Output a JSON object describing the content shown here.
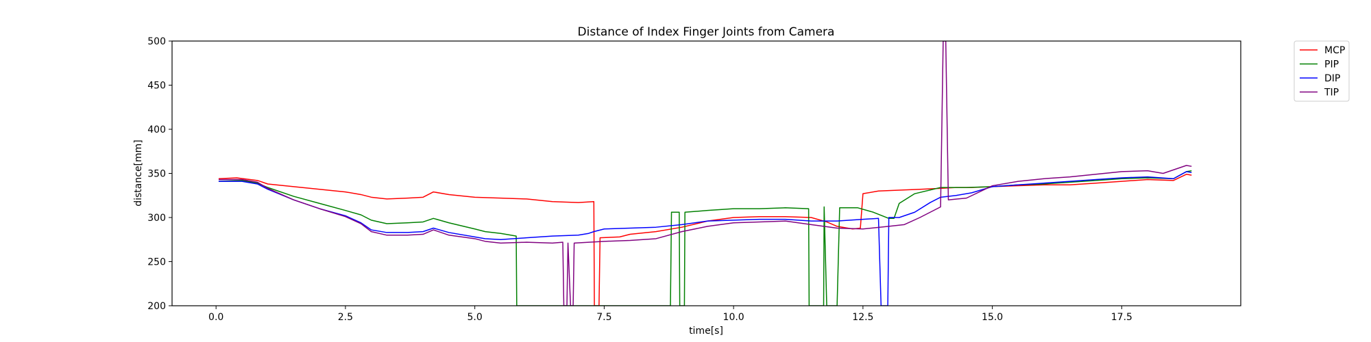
{
  "chart_data": {
    "type": "line",
    "title": "Distance of Index Finger Joints from Camera",
    "xlabel": "time[s]",
    "ylabel": "distance[mm]",
    "xlim": [
      -0.85,
      19.8
    ],
    "ylim": [
      200,
      500
    ],
    "xticks": [
      0.0,
      2.5,
      5.0,
      7.5,
      10.0,
      12.5,
      15.0,
      17.5
    ],
    "xtick_labels": [
      "0.0",
      "2.5",
      "5.0",
      "7.5",
      "10.0",
      "12.5",
      "15.0",
      "17.5"
    ],
    "yticks": [
      200,
      250,
      300,
      350,
      400,
      450,
      500
    ],
    "ytick_labels": [
      "200",
      "250",
      "300",
      "350",
      "400",
      "450",
      "500"
    ],
    "grid": false,
    "legend_position": "outside-top-right",
    "series": [
      {
        "name": "MCP",
        "color": "#ff0000",
        "points": [
          [
            0.05,
            344
          ],
          [
            0.4,
            345
          ],
          [
            0.8,
            342
          ],
          [
            1.0,
            338
          ],
          [
            1.5,
            335
          ],
          [
            2.0,
            332
          ],
          [
            2.5,
            329
          ],
          [
            2.8,
            326
          ],
          [
            3.0,
            323
          ],
          [
            3.3,
            321
          ],
          [
            3.7,
            322
          ],
          [
            4.0,
            323
          ],
          [
            4.2,
            329
          ],
          [
            4.5,
            326
          ],
          [
            5.0,
            323
          ],
          [
            5.5,
            322
          ],
          [
            6.0,
            321
          ],
          [
            6.5,
            318
          ],
          [
            7.0,
            317
          ],
          [
            7.3,
            318
          ],
          [
            7.31,
            200
          ],
          [
            7.4,
            200
          ],
          [
            7.42,
            277
          ],
          [
            7.8,
            278
          ],
          [
            8.0,
            281
          ],
          [
            8.5,
            284
          ],
          [
            9.0,
            289
          ],
          [
            9.5,
            296
          ],
          [
            10.0,
            300
          ],
          [
            10.5,
            301
          ],
          [
            11.0,
            301
          ],
          [
            11.5,
            300
          ],
          [
            11.8,
            295
          ],
          [
            12.0,
            290
          ],
          [
            12.3,
            287
          ],
          [
            12.45,
            288
          ],
          [
            12.5,
            327
          ],
          [
            12.8,
            330
          ],
          [
            13.2,
            331
          ],
          [
            13.6,
            332
          ],
          [
            14.0,
            333
          ],
          [
            14.3,
            334
          ],
          [
            14.6,
            334
          ],
          [
            15.0,
            335
          ],
          [
            15.5,
            336
          ],
          [
            16.0,
            337
          ],
          [
            16.5,
            337
          ],
          [
            17.0,
            339
          ],
          [
            17.5,
            341
          ],
          [
            18.0,
            343
          ],
          [
            18.5,
            342
          ],
          [
            18.75,
            349
          ],
          [
            18.85,
            348
          ]
        ]
      },
      {
        "name": "PIP",
        "color": "#008000",
        "points": [
          [
            0.05,
            341
          ],
          [
            0.5,
            342
          ],
          [
            0.8,
            339
          ],
          [
            1.0,
            334
          ],
          [
            1.5,
            324
          ],
          [
            2.0,
            316
          ],
          [
            2.5,
            308
          ],
          [
            2.8,
            303
          ],
          [
            3.0,
            297
          ],
          [
            3.3,
            293
          ],
          [
            3.7,
            294
          ],
          [
            4.0,
            295
          ],
          [
            4.2,
            299
          ],
          [
            4.5,
            294
          ],
          [
            5.0,
            287
          ],
          [
            5.2,
            284
          ],
          [
            5.5,
            282
          ],
          [
            5.8,
            279
          ],
          [
            5.81,
            200
          ],
          [
            5.9,
            200
          ],
          [
            8.78,
            200
          ],
          [
            8.8,
            306
          ],
          [
            8.95,
            306
          ],
          [
            8.96,
            200
          ],
          [
            9.05,
            200
          ],
          [
            9.06,
            306
          ],
          [
            9.5,
            308
          ],
          [
            10.0,
            310
          ],
          [
            10.5,
            310
          ],
          [
            11.0,
            311
          ],
          [
            11.45,
            310
          ],
          [
            11.46,
            200
          ],
          [
            11.74,
            200
          ],
          [
            11.75,
            312
          ],
          [
            11.8,
            200
          ],
          [
            12.0,
            200
          ],
          [
            12.05,
            311
          ],
          [
            12.4,
            311
          ],
          [
            12.7,
            306
          ],
          [
            13.0,
            299
          ],
          [
            13.1,
            299
          ],
          [
            13.2,
            316
          ],
          [
            13.5,
            327
          ],
          [
            14.0,
            334
          ],
          [
            14.5,
            334
          ],
          [
            15.0,
            335
          ],
          [
            15.5,
            337
          ],
          [
            16.0,
            338
          ],
          [
            16.5,
            340
          ],
          [
            17.0,
            342
          ],
          [
            17.5,
            344
          ],
          [
            18.0,
            345
          ],
          [
            18.5,
            344
          ],
          [
            18.75,
            352
          ],
          [
            18.85,
            353
          ]
        ]
      },
      {
        "name": "DIP",
        "color": "#0000ff",
        "points": [
          [
            0.05,
            341
          ],
          [
            0.5,
            341
          ],
          [
            0.8,
            338
          ],
          [
            1.0,
            332
          ],
          [
            1.5,
            320
          ],
          [
            2.0,
            310
          ],
          [
            2.5,
            302
          ],
          [
            2.8,
            294
          ],
          [
            3.0,
            286
          ],
          [
            3.3,
            283
          ],
          [
            3.7,
            283
          ],
          [
            4.0,
            284
          ],
          [
            4.2,
            288
          ],
          [
            4.5,
            283
          ],
          [
            5.0,
            278
          ],
          [
            5.2,
            276
          ],
          [
            5.5,
            275
          ],
          [
            6.0,
            277
          ],
          [
            6.5,
            279
          ],
          [
            7.0,
            280
          ],
          [
            7.2,
            282
          ],
          [
            7.3,
            284
          ],
          [
            7.5,
            287
          ],
          [
            8.0,
            288
          ],
          [
            8.5,
            289
          ],
          [
            9.0,
            292
          ],
          [
            9.5,
            296
          ],
          [
            10.0,
            297
          ],
          [
            10.5,
            298
          ],
          [
            11.0,
            298
          ],
          [
            11.5,
            296
          ],
          [
            12.0,
            296
          ],
          [
            12.5,
            298
          ],
          [
            12.8,
            299
          ],
          [
            12.85,
            200
          ],
          [
            12.98,
            200
          ],
          [
            13.0,
            300
          ],
          [
            13.2,
            300
          ],
          [
            13.5,
            306
          ],
          [
            13.8,
            317
          ],
          [
            14.0,
            323
          ],
          [
            14.3,
            325
          ],
          [
            14.6,
            328
          ],
          [
            15.0,
            335
          ],
          [
            15.5,
            337
          ],
          [
            16.0,
            339
          ],
          [
            16.5,
            341
          ],
          [
            17.0,
            343
          ],
          [
            17.5,
            345
          ],
          [
            18.0,
            346
          ],
          [
            18.5,
            344
          ],
          [
            18.75,
            352
          ],
          [
            18.85,
            351
          ]
        ]
      },
      {
        "name": "TIP",
        "color": "#800080",
        "points": [
          [
            0.05,
            343
          ],
          [
            0.5,
            343
          ],
          [
            0.8,
            340
          ],
          [
            1.0,
            333
          ],
          [
            1.5,
            320
          ],
          [
            2.0,
            310
          ],
          [
            2.5,
            301
          ],
          [
            2.8,
            293
          ],
          [
            3.0,
            284
          ],
          [
            3.3,
            280
          ],
          [
            3.7,
            280
          ],
          [
            4.0,
            281
          ],
          [
            4.2,
            286
          ],
          [
            4.5,
            280
          ],
          [
            5.0,
            276
          ],
          [
            5.2,
            273
          ],
          [
            5.5,
            271
          ],
          [
            6.0,
            272
          ],
          [
            6.5,
            271
          ],
          [
            6.7,
            272
          ],
          [
            6.72,
            200
          ],
          [
            6.78,
            200
          ],
          [
            6.8,
            271
          ],
          [
            6.85,
            200
          ],
          [
            6.9,
            200
          ],
          [
            6.92,
            271
          ],
          [
            7.5,
            273
          ],
          [
            8.0,
            274
          ],
          [
            8.5,
            276
          ],
          [
            9.0,
            284
          ],
          [
            9.5,
            290
          ],
          [
            10.0,
            294
          ],
          [
            10.5,
            295
          ],
          [
            11.0,
            296
          ],
          [
            11.5,
            292
          ],
          [
            12.0,
            288
          ],
          [
            12.5,
            287
          ],
          [
            13.0,
            290
          ],
          [
            13.3,
            292
          ],
          [
            13.6,
            300
          ],
          [
            14.0,
            312
          ],
          [
            14.05,
            500
          ],
          [
            14.1,
            500
          ],
          [
            14.15,
            320
          ],
          [
            14.5,
            322
          ],
          [
            15.0,
            336
          ],
          [
            15.5,
            341
          ],
          [
            16.0,
            344
          ],
          [
            16.5,
            346
          ],
          [
            17.0,
            349
          ],
          [
            17.5,
            352
          ],
          [
            18.0,
            353
          ],
          [
            18.3,
            350
          ],
          [
            18.75,
            359
          ],
          [
            18.85,
            358
          ]
        ]
      }
    ]
  }
}
